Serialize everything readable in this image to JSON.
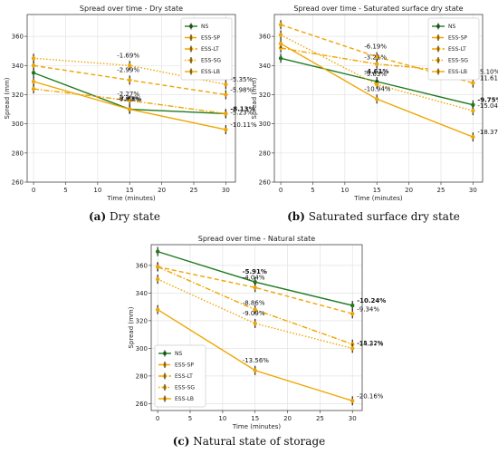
{
  "captions": [
    {
      "letter": "(a)",
      "text": "Dry state"
    },
    {
      "letter": "(b)",
      "text": "Saturated surface dry state"
    },
    {
      "letter": "(c)",
      "text": "Natural state of storage"
    }
  ],
  "chart_data": [
    {
      "type": "line",
      "title": "Spread over time - Dry state",
      "xlabel": "Time (minutes)",
      "ylabel": "Spread (mm)",
      "xlim": [
        -1,
        31.5
      ],
      "ylim": [
        260,
        375
      ],
      "xticks": [
        0,
        5,
        10,
        15,
        20,
        25,
        30
      ],
      "yticks": [
        260,
        280,
        300,
        320,
        340,
        360
      ],
      "x": [
        0,
        15,
        30
      ],
      "legend_position": "top-right",
      "series": [
        {
          "name": "NS",
          "color": "#1f7a1f",
          "dash": "solid",
          "values": [
            335,
            310,
            307
          ],
          "labels": [
            "",
            "-7.63%",
            "-8.13%"
          ],
          "label_bold": true
        },
        {
          "name": "ESS-SP",
          "color": "#f0a500",
          "dash": "dashed",
          "values": [
            340,
            330,
            320
          ],
          "labels": [
            "",
            "-2.99%",
            "-5.98%"
          ],
          "label_bold": false
        },
        {
          "name": "ESS-LT",
          "color": "#f0a500",
          "dash": "dashdot",
          "values": [
            324,
            316,
            307
          ],
          "labels": [
            "",
            "-2.27%",
            "-5.23%"
          ],
          "label_bold": false
        },
        {
          "name": "ESS-SG",
          "color": "#f0a500",
          "dash": "dotted",
          "values": [
            345,
            340,
            327
          ],
          "labels": [
            "",
            "-1.69%",
            "-5.35%"
          ],
          "label_bold": false
        },
        {
          "name": "ESS-LB",
          "color": "#f0a500",
          "dash": "solid",
          "values": [
            329,
            310,
            296
          ],
          "labels": [
            "",
            "-6.09%",
            "-10.11%"
          ],
          "label_bold": false
        }
      ]
    },
    {
      "type": "line",
      "title": "Spread over time - Saturated surface dry state",
      "xlabel": "Time (minutes)",
      "ylabel": "Spread (mm)",
      "xlim": [
        -1,
        31.5
      ],
      "ylim": [
        260,
        375
      ],
      "xticks": [
        0,
        5,
        10,
        15,
        20,
        25,
        30
      ],
      "yticks": [
        260,
        280,
        300,
        320,
        340,
        360
      ],
      "x": [
        0,
        15,
        30
      ],
      "legend_position": "top-right",
      "series": [
        {
          "name": "NS",
          "color": "#1f7a1f",
          "dash": "solid",
          "values": [
            345,
            329,
            313
          ],
          "labels": [
            "",
            "-4.61%",
            "-9.75%"
          ],
          "label_bold": true
        },
        {
          "name": "ESS-SP",
          "color": "#f0a500",
          "dash": "dashed",
          "values": [
            368,
            346,
            328
          ],
          "labels": [
            "",
            "-6.19%",
            "-11.61%"
          ],
          "label_bold": false
        },
        {
          "name": "ESS-LT",
          "color": "#f0a500",
          "dash": "dashdot",
          "values": [
            352,
            341,
            335
          ],
          "labels": [
            "",
            "-3.21%",
            "-5.10%"
          ],
          "label_bold": false
        },
        {
          "name": "ESS-SG",
          "color": "#f0a500",
          "dash": "dotted",
          "values": [
            361,
            327,
            309
          ],
          "labels": [
            "",
            "-9.63%",
            "-15.04%"
          ],
          "label_bold": false
        },
        {
          "name": "ESS-LB",
          "color": "#f0a500",
          "dash": "solid",
          "values": [
            355,
            317,
            291
          ],
          "labels": [
            "",
            "-10.94%",
            "-18.37%"
          ],
          "label_bold": false
        }
      ]
    },
    {
      "type": "line",
      "title": "Spread over time - Natural state",
      "xlabel": "Time (minutes)",
      "ylabel": "Spread (mm)",
      "xlim": [
        -1,
        31.5
      ],
      "ylim": [
        255,
        375
      ],
      "xticks": [
        0,
        5,
        10,
        15,
        20,
        25,
        30
      ],
      "yticks": [
        260,
        280,
        300,
        320,
        340,
        360
      ],
      "x": [
        0,
        15,
        30
      ],
      "legend_position": "bottom-left",
      "series": [
        {
          "name": "NS",
          "color": "#1f7a1f",
          "dash": "solid",
          "values": [
            370,
            348,
            331
          ],
          "labels": [
            "",
            "-5.91%",
            "-10.24%"
          ],
          "label_bold": true
        },
        {
          "name": "ESS-SP",
          "color": "#f0a500",
          "dash": "dashed",
          "values": [
            359,
            344,
            325
          ],
          "labels": [
            "",
            "-4.04%",
            "-9.34%"
          ],
          "label_bold": false
        },
        {
          "name": "ESS-LT",
          "color": "#f0a500",
          "dash": "dashdot",
          "values": [
            359,
            328,
            303
          ],
          "labels": [
            "",
            "-8.86%",
            "-15.22%"
          ],
          "label_bold": false
        },
        {
          "name": "ESS-SG",
          "color": "#f0a500",
          "dash": "dotted",
          "values": [
            350,
            318,
            300
          ],
          "labels": [
            "",
            "-9.09%",
            "-14.37%"
          ],
          "label_bold": false
        },
        {
          "name": "ESS-LB",
          "color": "#f0a500",
          "dash": "solid",
          "values": [
            328,
            284,
            262
          ],
          "labels": [
            "",
            "-13.56%",
            "-20.16%"
          ],
          "label_bold": false
        }
      ]
    }
  ]
}
